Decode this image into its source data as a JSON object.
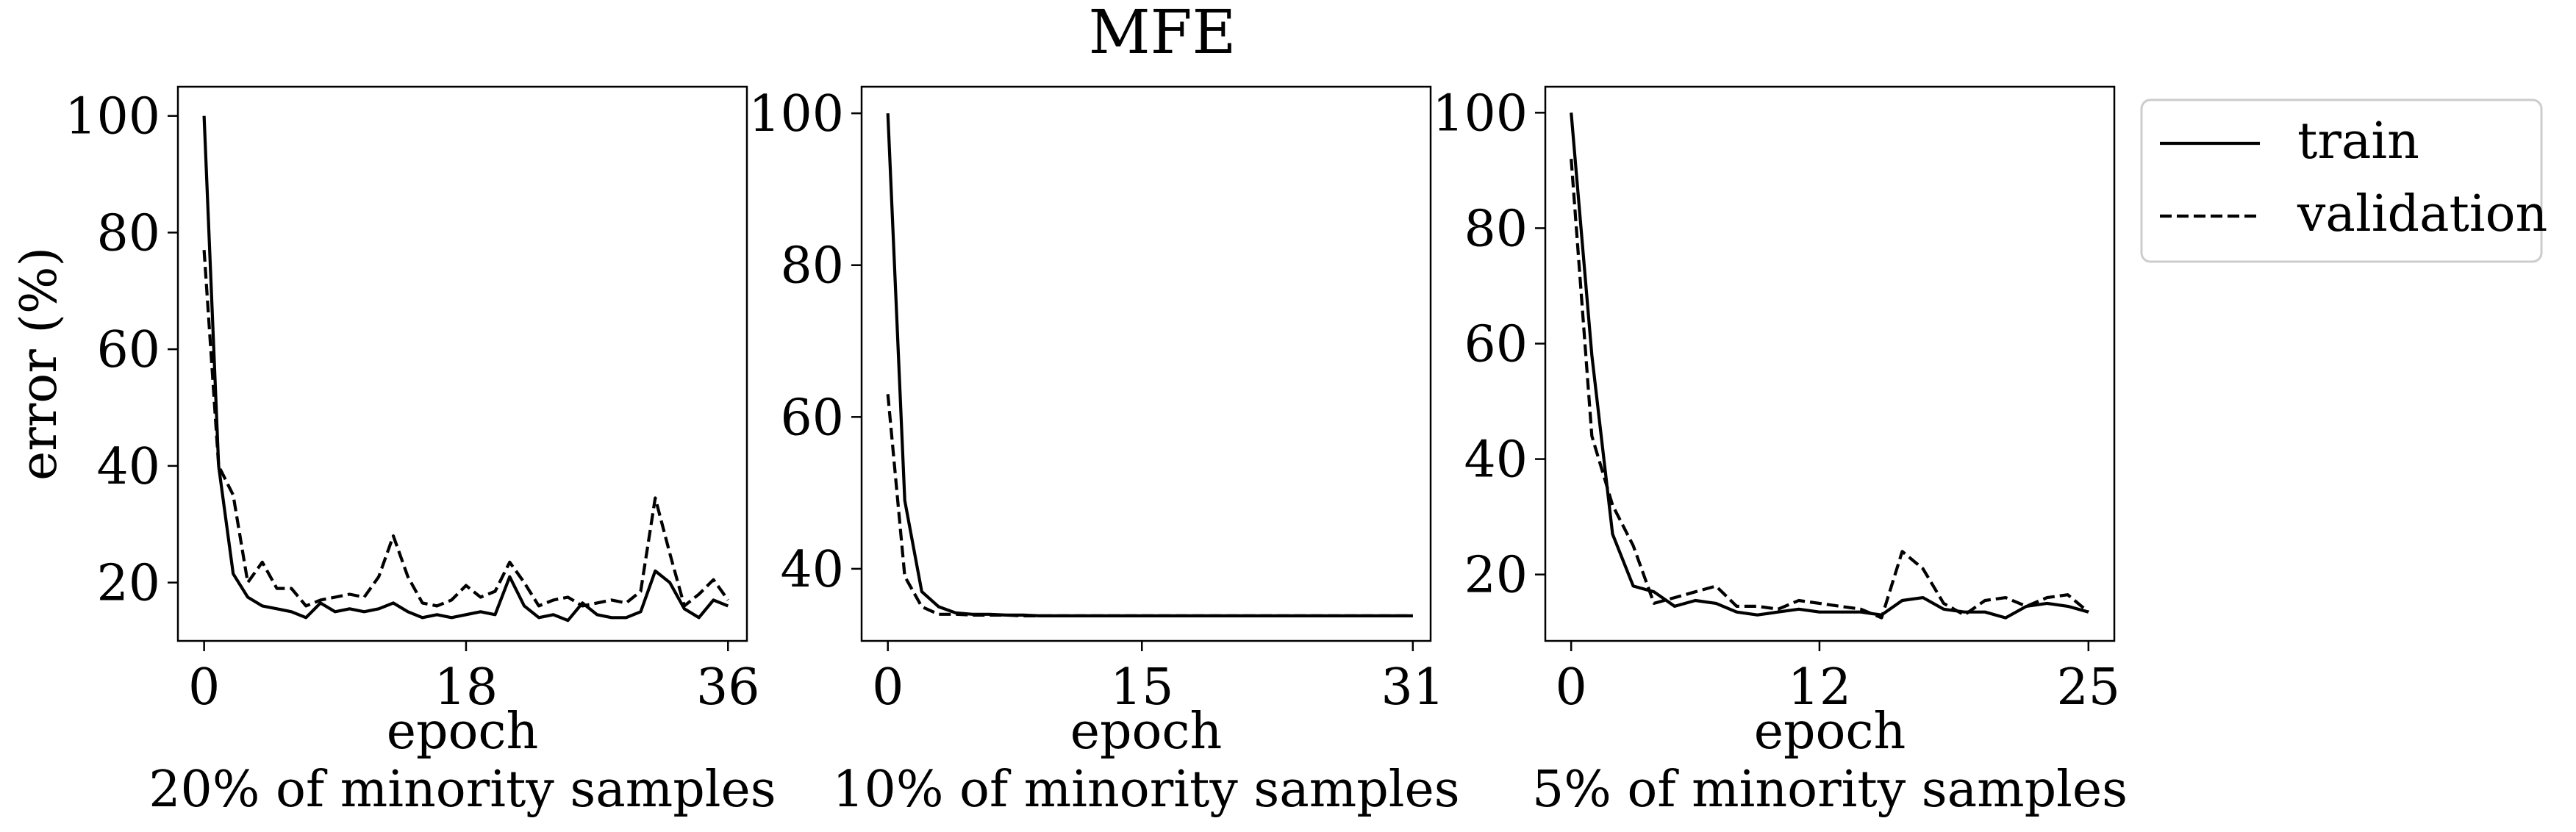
{
  "figure": {
    "title": "MFE"
  },
  "legend": {
    "placement": "outside-right",
    "entries": [
      {
        "label": "train",
        "style": "solid"
      },
      {
        "label": "validation",
        "style": "dashed"
      }
    ]
  },
  "colors": {
    "lines": "#000000",
    "background": "#ffffff"
  },
  "chart_data": [
    {
      "type": "line",
      "title": "",
      "ylabel": "error (%)",
      "xlabel": "epoch",
      "subtitle": "20% of minority samples",
      "xlim": [
        -1.8,
        37.3
      ],
      "ylim": [
        10,
        105
      ],
      "xticks": [
        0,
        18,
        36
      ],
      "yticks": [
        20,
        40,
        60,
        80,
        100
      ],
      "grid": false,
      "series": [
        {
          "name": "train",
          "style": "solid",
          "x": [
            0,
            1,
            2,
            3,
            4,
            5,
            6,
            7,
            8,
            9,
            10,
            11,
            12,
            13,
            14,
            15,
            16,
            17,
            18,
            19,
            20,
            21,
            22,
            23,
            24,
            25,
            26,
            27,
            28,
            29,
            30,
            31,
            32,
            33,
            34,
            35,
            36
          ],
          "y": [
            100,
            40,
            21.5,
            17.5,
            16,
            15.5,
            15,
            14,
            16.5,
            15,
            15.5,
            15,
            15.5,
            16.5,
            15,
            14,
            14.5,
            14,
            14.5,
            15,
            14.5,
            21,
            16,
            14,
            14.5,
            13.5,
            16.5,
            14.5,
            14,
            14,
            15,
            22,
            20,
            15.5,
            14,
            17,
            16
          ]
        },
        {
          "name": "validation",
          "style": "dashed",
          "x": [
            0,
            1,
            2,
            3,
            4,
            5,
            6,
            7,
            8,
            9,
            10,
            11,
            12,
            13,
            14,
            15,
            16,
            17,
            18,
            19,
            20,
            21,
            22,
            23,
            24,
            25,
            26,
            27,
            28,
            29,
            30,
            31,
            32,
            33,
            34,
            35,
            36
          ],
          "y": [
            77,
            40,
            35,
            20,
            23.5,
            19,
            19,
            16,
            17,
            17.5,
            18,
            17.5,
            21,
            28,
            21,
            16.5,
            16,
            17,
            19.5,
            17.5,
            18.5,
            23.5,
            20,
            16,
            17,
            17.5,
            16,
            16.5,
            17,
            16.5,
            18.5,
            34.5,
            25,
            16,
            18,
            20.5,
            17
          ]
        }
      ]
    },
    {
      "type": "line",
      "title": "",
      "ylabel": "",
      "xlabel": "epoch",
      "subtitle": "10% of minority samples",
      "xlim": [
        -1.55,
        32.05
      ],
      "ylim": [
        30.5,
        103.5
      ],
      "xticks": [
        0,
        15,
        31
      ],
      "yticks": [
        40,
        60,
        80,
        100
      ],
      "grid": false,
      "series": [
        {
          "name": "train",
          "style": "solid",
          "x": [
            0,
            1,
            2,
            3,
            4,
            5,
            6,
            7,
            8,
            9,
            10,
            11,
            12,
            13,
            14,
            15,
            16,
            17,
            18,
            19,
            20,
            21,
            22,
            23,
            24,
            25,
            26,
            27,
            28,
            29,
            30,
            31
          ],
          "y": [
            100,
            49,
            37,
            35,
            34.2,
            34,
            34,
            33.9,
            33.9,
            33.8,
            33.8,
            33.8,
            33.8,
            33.8,
            33.8,
            33.8,
            33.8,
            33.8,
            33.8,
            33.8,
            33.8,
            33.8,
            33.8,
            33.8,
            33.8,
            33.8,
            33.8,
            33.8,
            33.8,
            33.8,
            33.8,
            33.8
          ]
        },
        {
          "name": "validation",
          "style": "dashed",
          "x": [
            0,
            1,
            2,
            3,
            4,
            5,
            6,
            7,
            8,
            9,
            10,
            11,
            12,
            13,
            14,
            15,
            16,
            17,
            18,
            19,
            20,
            21,
            22,
            23,
            24,
            25,
            26,
            27,
            28,
            29,
            30,
            31
          ],
          "y": [
            63,
            39,
            35,
            34,
            34,
            33.9,
            33.9,
            33.9,
            33.8,
            33.8,
            33.8,
            33.8,
            33.8,
            33.8,
            33.8,
            33.8,
            33.8,
            33.8,
            33.8,
            33.8,
            33.8,
            33.8,
            33.8,
            33.8,
            33.8,
            33.8,
            33.8,
            33.8,
            33.8,
            33.8,
            33.8,
            33.8
          ]
        }
      ]
    },
    {
      "type": "line",
      "title": "",
      "ylabel": "",
      "xlabel": "epoch",
      "subtitle": "5% of minority samples",
      "xlim": [
        -1.25,
        26.25
      ],
      "ylim": [
        8.5,
        104.5
      ],
      "xticks": [
        0,
        12,
        25
      ],
      "yticks": [
        20,
        40,
        60,
        80,
        100
      ],
      "grid": false,
      "series": [
        {
          "name": "train",
          "style": "solid",
          "x": [
            0,
            1,
            2,
            3,
            4,
            5,
            6,
            7,
            8,
            9,
            10,
            11,
            12,
            13,
            14,
            15,
            16,
            17,
            18,
            19,
            20,
            21,
            22,
            23,
            24,
            25
          ],
          "y": [
            100,
            58,
            27,
            18,
            17,
            14.5,
            15.5,
            15,
            13.5,
            13,
            13.5,
            14,
            13.5,
            13.5,
            13.5,
            13,
            15.5,
            16,
            14,
            13.5,
            13.5,
            12.5,
            14.5,
            15,
            14.5,
            13.5
          ]
        },
        {
          "name": "validation",
          "style": "dashed",
          "x": [
            0,
            1,
            2,
            3,
            4,
            5,
            6,
            7,
            8,
            9,
            10,
            11,
            12,
            13,
            14,
            15,
            16,
            17,
            18,
            19,
            20,
            21,
            22,
            23,
            24,
            25
          ],
          "y": [
            92,
            44,
            32,
            25,
            15,
            16,
            17,
            18,
            14.5,
            14.5,
            14,
            15.5,
            15,
            14.5,
            14,
            12.5,
            24,
            21,
            15,
            13,
            15.5,
            16,
            14.5,
            16,
            16.5,
            13.5
          ]
        }
      ]
    }
  ]
}
